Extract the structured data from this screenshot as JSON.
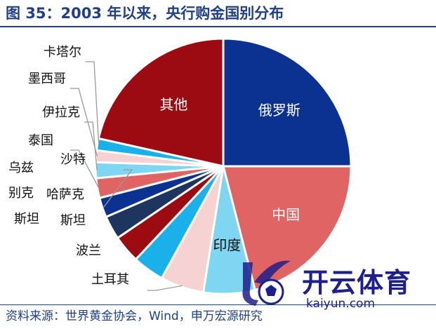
{
  "header": {
    "title": "图 35：2003 年以来，央行购金国别分布"
  },
  "source": {
    "text": "资料来源：世界黄金协会，Wind，申万宏源研究"
  },
  "watermark": {
    "name": "开云体育",
    "domain": "kaiyun.com",
    "logo_icon": "kaiyun-logo-icon"
  },
  "chart_data": {
    "type": "pie",
    "title": "图 35：2003 年以来，央行购金国别分布",
    "start_angle_deg": 0,
    "direction": "clockwise",
    "slices": [
      {
        "label": "俄罗斯",
        "value": 25.0,
        "color": "#0b3191",
        "label_color": "#ffffff"
      },
      {
        "label": "中国",
        "value": 21.0,
        "color": "#e06464",
        "label_color": "#ffffff"
      },
      {
        "label": "印度",
        "value": 6.5,
        "color": "#7fd6f2",
        "label_color": "#111111"
      },
      {
        "label": "土耳其",
        "value": 5.5,
        "color": "#f7d2d2",
        "label_color": "#111111"
      },
      {
        "label": "波兰",
        "value": 4.0,
        "color": "#1ab0ea",
        "label_color": "#111111"
      },
      {
        "label": "哈萨克斯坦",
        "value": 3.5,
        "color": "#9c0b12",
        "label_color": "#111111"
      },
      {
        "label": "乌兹别克斯坦",
        "value": 3.0,
        "color": "#1e3560",
        "label_color": "#111111"
      },
      {
        "label": "沙特",
        "value": 2.5,
        "color": "#0b3191",
        "label_color": "#111111"
      },
      {
        "label": "泰国",
        "value": 2.5,
        "color": "#e06464",
        "label_color": "#111111"
      },
      {
        "label": "伊拉克",
        "value": 2.0,
        "color": "#7fd6f2",
        "label_color": "#111111"
      },
      {
        "label": "墨西哥",
        "value": 1.5,
        "color": "#f7d2d2",
        "label_color": "#111111"
      },
      {
        "label": "卡塔尔",
        "value": 1.5,
        "color": "#1ab0ea",
        "label_color": "#111111"
      },
      {
        "label": "其他",
        "value": 21.5,
        "color": "#9c0b12",
        "label_color": "#ffffff"
      }
    ]
  }
}
